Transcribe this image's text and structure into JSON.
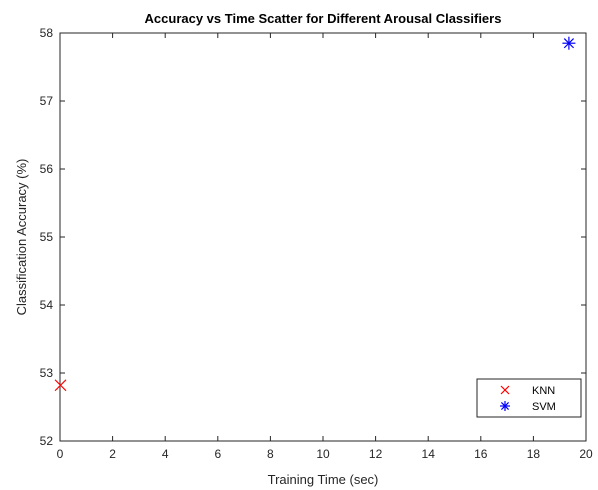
{
  "chart_data": {
    "type": "scatter",
    "title": "Accuracy vs Time Scatter for Different Arousal Classifiers",
    "xlabel": "Training Time (sec)",
    "ylabel": "Classification Accuracy (%)",
    "xlim": [
      0,
      20
    ],
    "ylim": [
      52,
      58
    ],
    "xticks": [
      0,
      2,
      4,
      6,
      8,
      10,
      12,
      14,
      16,
      18,
      20
    ],
    "yticks": [
      52,
      53,
      54,
      55,
      56,
      57,
      58
    ],
    "grid": false,
    "legend_position": "bottom-right",
    "series": [
      {
        "name": "KNN",
        "marker": "x-icon",
        "color": "#ff0000",
        "points": [
          {
            "x": 0.02,
            "y": 52.82
          }
        ]
      },
      {
        "name": "SVM",
        "marker": "asterisk-icon",
        "color": "#0000ff",
        "points": [
          {
            "x": 19.35,
            "y": 57.85
          }
        ]
      }
    ]
  }
}
